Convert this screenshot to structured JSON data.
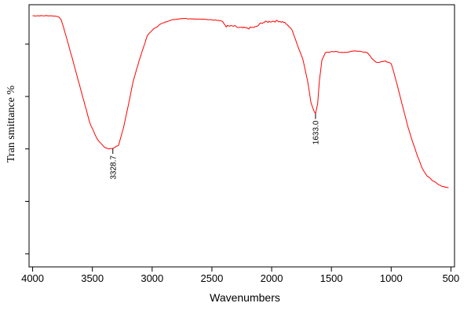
{
  "chart_data": {
    "type": "line",
    "xlabel": "Wavenumbers",
    "ylabel": "Tran smittance %",
    "xlim": [
      4030,
      470
    ],
    "x_reversed": true,
    "ylim": [
      0,
      100
    ],
    "x_ticks": [
      4000,
      3500,
      3000,
      2500,
      2000,
      1500,
      1000,
      500
    ],
    "y_ticks": [
      5,
      25,
      45,
      65,
      85
    ],
    "y_tick_labels_shown": false,
    "grid": false,
    "legend": "none",
    "series": [
      {
        "color": "#ff0000",
        "points": [
          [
            4000,
            95.8
          ],
          [
            3850,
            95.8
          ],
          [
            3790,
            95.6
          ],
          [
            3760,
            94.2
          ],
          [
            3720,
            88.0
          ],
          [
            3650,
            76.5
          ],
          [
            3580,
            64.7
          ],
          [
            3520,
            54.7
          ],
          [
            3460,
            48.8
          ],
          [
            3400,
            45.6
          ],
          [
            3360,
            45.0
          ],
          [
            3328.7,
            45.2
          ],
          [
            3280,
            46.5
          ],
          [
            3240,
            52.9
          ],
          [
            3200,
            61.5
          ],
          [
            3160,
            70.6
          ],
          [
            3100,
            80.0
          ],
          [
            3040,
            88.2
          ],
          [
            3000,
            90.3
          ],
          [
            2930,
            92.6
          ],
          [
            2850,
            94.1
          ],
          [
            2750,
            94.8
          ],
          [
            2650,
            94.6
          ],
          [
            2550,
            94.4
          ],
          [
            2470,
            94.2
          ],
          [
            2420,
            93.8
          ],
          [
            2380,
            91.8
          ],
          [
            2320,
            91.8
          ],
          [
            2270,
            91.2
          ],
          [
            2200,
            91.0
          ],
          [
            2130,
            91.5
          ],
          [
            2080,
            93.2
          ],
          [
            2000,
            93.7
          ],
          [
            1940,
            93.8
          ],
          [
            1890,
            93.2
          ],
          [
            1830,
            90.5
          ],
          [
            1790,
            85.3
          ],
          [
            1740,
            79.4
          ],
          [
            1700,
            71.2
          ],
          [
            1670,
            62.4
          ],
          [
            1645,
            59.4
          ],
          [
            1633.0,
            58.5
          ],
          [
            1615,
            62.4
          ],
          [
            1600,
            71.2
          ],
          [
            1580,
            78.8
          ],
          [
            1550,
            81.8
          ],
          [
            1500,
            82.0
          ],
          [
            1450,
            82.1
          ],
          [
            1400,
            81.7
          ],
          [
            1300,
            82.4
          ],
          [
            1250,
            82.1
          ],
          [
            1200,
            81.8
          ],
          [
            1160,
            79.4
          ],
          [
            1130,
            78.2
          ],
          [
            1100,
            78.0
          ],
          [
            1050,
            78.5
          ],
          [
            1000,
            77.6
          ],
          [
            980,
            74.7
          ],
          [
            940,
            67.6
          ],
          [
            900,
            60.6
          ],
          [
            860,
            53.5
          ],
          [
            820,
            47.6
          ],
          [
            780,
            42.4
          ],
          [
            740,
            37.6
          ],
          [
            700,
            34.7
          ],
          [
            660,
            33.2
          ],
          [
            600,
            31.2
          ],
          [
            550,
            30.5
          ],
          [
            520,
            30.2
          ]
        ]
      }
    ],
    "annotations": [
      {
        "x": 3328.7,
        "y": 45.2,
        "text": "3328.7"
      },
      {
        "x": 1633.0,
        "y": 58.5,
        "text": "1633.0"
      }
    ]
  }
}
